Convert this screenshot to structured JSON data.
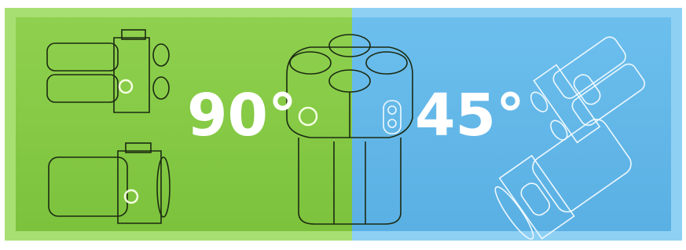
{
  "labels": {
    "left": "90°",
    "right": "45°"
  }
}
